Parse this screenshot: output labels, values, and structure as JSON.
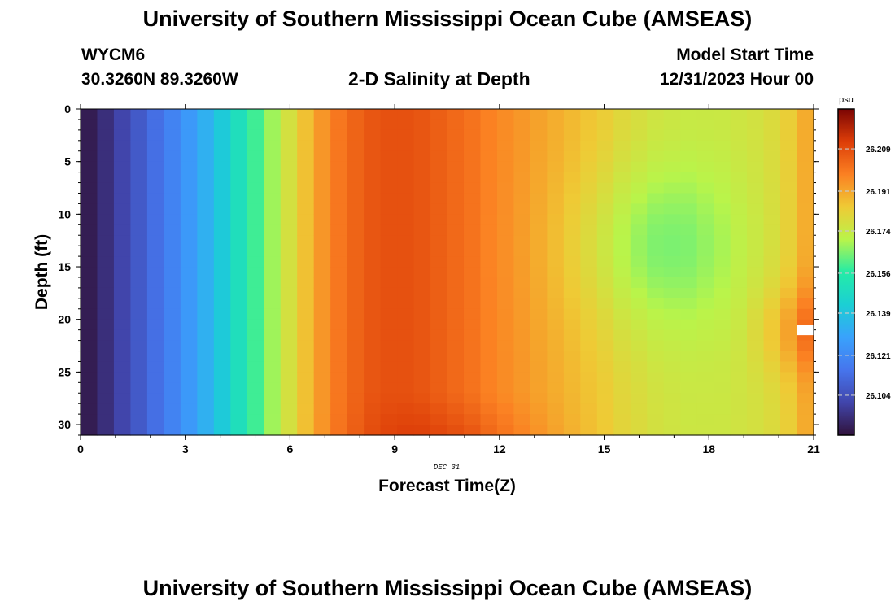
{
  "page": {
    "title_top": "University of Southern Mississippi Ocean Cube (AMSEAS)",
    "title_bottom": "University of Southern Mississippi Ocean Cube (AMSEAS)",
    "station_id": "WYCM6",
    "station_coords": "30.3260N  89.3260W",
    "plot_title": "2-D Salinity at Depth",
    "model_start_label": "Model Start Time",
    "model_start_value": "12/31/2023 Hour 00"
  },
  "chart_data": {
    "type": "heatmap",
    "title": "2-D Salinity at Depth",
    "xlabel": "Forecast Time(Z)",
    "ylabel": "Depth (ft)",
    "date_annotation": "DEC 31",
    "x_ticks": [
      "0",
      "3",
      "6",
      "9",
      "12",
      "15",
      "18",
      "21"
    ],
    "y_ticks": [
      "0",
      "5",
      "10",
      "15",
      "20",
      "25",
      "30"
    ],
    "xlim": [
      0,
      21
    ],
    "ylim": [
      0,
      31
    ],
    "colorbar": {
      "unit": "psu",
      "tick_labels": [
        "26.209",
        "26.191",
        "26.174",
        "26.156",
        "26.139",
        "26.121",
        "26.104"
      ],
      "min": 26.087,
      "max": 26.226
    },
    "surface_salinity_by_hour": [
      26.09,
      26.095,
      26.101,
      26.107,
      26.113,
      26.119,
      26.126,
      26.133,
      26.141,
      26.15,
      26.159,
      26.168,
      26.177,
      26.186,
      26.194,
      26.2,
      26.204,
      26.207,
      26.208,
      26.208,
      26.207,
      26.205,
      26.203,
      26.201,
      26.198,
      26.196,
      26.194,
      26.192,
      26.19,
      26.188,
      26.186,
      26.184,
      26.181,
      26.179,
      26.177,
      26.176,
      26.175,
      26.175,
      26.175,
      26.176,
      26.177,
      26.179,
      26.183,
      26.19
    ],
    "notes": "Salinity nearly uniform with depth; mid-depth (around 12-15 ft) minimum near hours 15-18 and a near-bottom maximum near hours 10-13; darker, saltier values at hour 21 around 18-25 ft."
  }
}
